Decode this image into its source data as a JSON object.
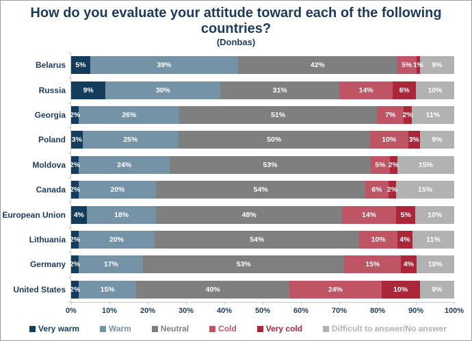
{
  "title": "How do you evaluate your attitude toward each of the following countries?",
  "subtitle": "(Donbas)",
  "colors": {
    "title_text": "#1B3A5E",
    "axis_line": "#C6C6C6",
    "axis_label_text": "#1B3A5E",
    "bar_label_text": "#FFFFFF"
  },
  "chart_data": {
    "type": "bar",
    "orientation": "horizontal-stacked",
    "title": "How do you evaluate your attitude toward each of the following countries?",
    "subtitle": "(Donbas)",
    "xlabel": "",
    "ylabel": "",
    "xlim": [
      0,
      100
    ],
    "grid": false,
    "legend_position": "bottom",
    "value_suffix": "%",
    "categories": [
      "Belarus",
      "Russia",
      "Georgia",
      "Poland",
      "Moldova",
      "Canada",
      "European Union",
      "Lithuania",
      "Germany",
      "United States"
    ],
    "series": [
      {
        "name": "Very warm",
        "color": "#143D5D",
        "values": [
          5,
          9,
          2,
          3,
          2,
          2,
          4,
          2,
          2,
          2
        ]
      },
      {
        "name": "Warm",
        "color": "#7593A7",
        "values": [
          39,
          30,
          26,
          25,
          24,
          20,
          18,
          20,
          17,
          15
        ]
      },
      {
        "name": "Neutral",
        "color": "#7F7F7F",
        "values": [
          42,
          31,
          51,
          50,
          53,
          54,
          48,
          54,
          53,
          40
        ]
      },
      {
        "name": "Cold",
        "color": "#BF5465",
        "values": [
          5,
          14,
          7,
          10,
          5,
          6,
          14,
          10,
          15,
          24
        ]
      },
      {
        "name": "Very cold",
        "color": "#AA2639",
        "values": [
          1,
          6,
          2,
          3,
          2,
          2,
          5,
          4,
          4,
          10
        ]
      },
      {
        "name": "Difficult to answer/No answer",
        "color": "#B2B2B2",
        "values": [
          9,
          10,
          11,
          9,
          15,
          15,
          10,
          11,
          10,
          9
        ]
      }
    ],
    "x_ticks": [
      "0%",
      "10%",
      "20%",
      "30%",
      "40%",
      "50%",
      "60%",
      "70%",
      "80%",
      "90%",
      "100%"
    ]
  }
}
